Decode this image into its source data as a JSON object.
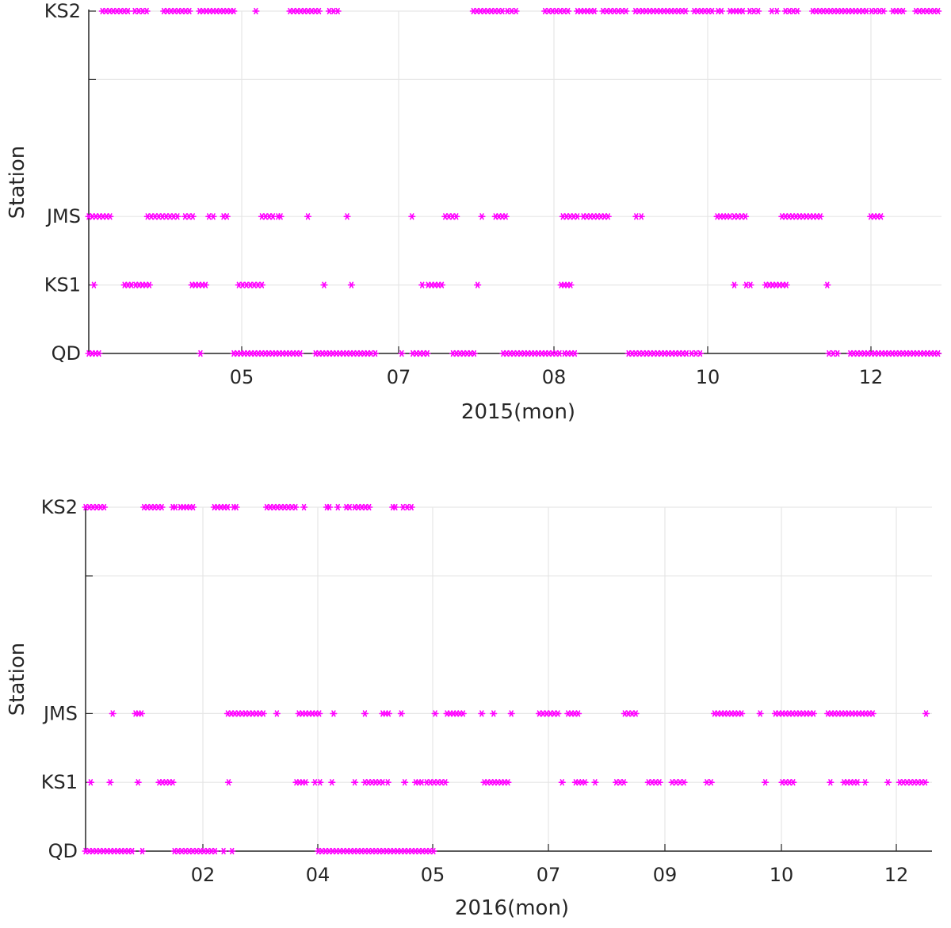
{
  "colors": {
    "marker": "#ff00ff",
    "grid": "#e6e6e6",
    "axis": "#262626",
    "text": "#262626",
    "background": "#ffffff"
  },
  "chart_data": [
    {
      "type": "scatter",
      "xlabel": "2015(mon)",
      "ylabel": "Station",
      "x_tick_labels": [
        "05",
        "07",
        "08",
        "10",
        "12"
      ],
      "x_range": [
        0,
        1.0
      ],
      "y_categories": [
        "QD",
        "KS1",
        "JMS",
        "KS2"
      ],
      "y_values": [
        0,
        1,
        2,
        5
      ],
      "y_range": [
        0,
        5
      ],
      "y_minor_ticks": [
        1,
        4
      ],
      "grid": true,
      "marker": "asterisk",
      "note_x_units": "fraction of displayed time span",
      "series": [
        {
          "station": "KS2",
          "y": 5,
          "ranges": [
            [
              0.016,
              0.046
            ],
            [
              0.054,
              0.068
            ],
            [
              0.088,
              0.118
            ],
            [
              0.13,
              0.17
            ],
            [
              0.195,
              0.197
            ],
            [
              0.236,
              0.27
            ],
            [
              0.282,
              0.292
            ],
            [
              0.451,
              0.485
            ],
            [
              0.491,
              0.501
            ],
            [
              0.535,
              0.562
            ],
            [
              0.573,
              0.593
            ],
            [
              0.603,
              0.63
            ],
            [
              0.641,
              0.7
            ],
            [
              0.71,
              0.731
            ],
            [
              0.738,
              0.742
            ],
            [
              0.752,
              0.767
            ],
            [
              0.775,
              0.785
            ],
            [
              0.801,
              0.807
            ],
            [
              0.817,
              0.831
            ],
            [
              0.849,
              0.912
            ],
            [
              0.918,
              0.932
            ],
            [
              0.943,
              0.955
            ],
            [
              0.97,
              0.996
            ]
          ]
        },
        {
          "station": "JMS",
          "y": 2,
          "ranges": [
            [
              0.0,
              0.025
            ],
            [
              0.069,
              0.104
            ],
            [
              0.113,
              0.122
            ],
            [
              0.141,
              0.146
            ],
            [
              0.158,
              0.162
            ],
            [
              0.203,
              0.216
            ],
            [
              0.222,
              0.225
            ],
            [
              0.256,
              0.258
            ],
            [
              0.302,
              0.304
            ],
            [
              0.378,
              0.38
            ],
            [
              0.418,
              0.431
            ],
            [
              0.46,
              0.462
            ],
            [
              0.477,
              0.489
            ],
            [
              0.556,
              0.573
            ],
            [
              0.58,
              0.609
            ],
            [
              0.642,
              0.648
            ],
            [
              0.737,
              0.752
            ],
            [
              0.757,
              0.77
            ],
            [
              0.813,
              0.858
            ],
            [
              0.917,
              0.929
            ]
          ]
        },
        {
          "station": "KS1",
          "y": 1,
          "ranges": [
            [
              0.005,
              0.007
            ],
            [
              0.042,
              0.05
            ],
            [
              0.055,
              0.071
            ],
            [
              0.121,
              0.137
            ],
            [
              0.176,
              0.203
            ],
            [
              0.275,
              0.277
            ],
            [
              0.307,
              0.309
            ],
            [
              0.39,
              0.392
            ],
            [
              0.398,
              0.414
            ],
            [
              0.455,
              0.457
            ],
            [
              0.554,
              0.565
            ],
            [
              0.756,
              0.758
            ],
            [
              0.771,
              0.776
            ],
            [
              0.794,
              0.818
            ],
            [
              0.865,
              0.867
            ]
          ]
        },
        {
          "station": "QD",
          "y": 0,
          "ranges": [
            [
              0.0,
              0.012
            ],
            [
              0.13,
              0.132
            ],
            [
              0.17,
              0.248
            ],
            [
              0.266,
              0.331
            ],
            [
              0.335,
              0.337
            ],
            [
              0.366,
              0.368
            ],
            [
              0.38,
              0.397
            ],
            [
              0.427,
              0.452
            ],
            [
              0.486,
              0.552
            ],
            [
              0.558,
              0.57
            ],
            [
              0.633,
              0.701
            ],
            [
              0.707,
              0.717
            ],
            [
              0.868,
              0.878
            ],
            [
              0.893,
              0.996
            ]
          ]
        }
      ]
    },
    {
      "type": "scatter",
      "xlabel": "2016(mon)",
      "ylabel": "Station",
      "x_tick_labels": [
        "02",
        "04",
        "05",
        "07",
        "09",
        "10",
        "12"
      ],
      "x_range": [
        0,
        1.0
      ],
      "y_categories": [
        "QD",
        "KS1",
        "JMS",
        "KS2"
      ],
      "y_values": [
        0,
        1,
        2,
        5
      ],
      "y_range": [
        0,
        5
      ],
      "y_minor_ticks": [
        1,
        4
      ],
      "grid": true,
      "marker": "asterisk",
      "note_x_units": "fraction of displayed time span",
      "series": [
        {
          "station": "KS2",
          "y": 5,
          "ranges": [
            [
              0.0,
              0.022
            ],
            [
              0.069,
              0.09
            ],
            [
              0.103,
              0.106
            ],
            [
              0.112,
              0.127
            ],
            [
              0.152,
              0.168
            ],
            [
              0.175,
              0.178
            ],
            [
              0.214,
              0.248
            ],
            [
              0.257,
              0.259
            ],
            [
              0.285,
              0.288
            ],
            [
              0.297,
              0.299
            ],
            [
              0.308,
              0.312
            ],
            [
              0.318,
              0.335
            ],
            [
              0.363,
              0.366
            ],
            [
              0.375,
              0.385
            ]
          ]
        },
        {
          "station": "JMS",
          "y": 2,
          "ranges": [
            [
              0.031,
              0.033
            ],
            [
              0.059,
              0.066
            ],
            [
              0.168,
              0.21
            ],
            [
              0.225,
              0.227
            ],
            [
              0.252,
              0.276
            ],
            [
              0.292,
              0.294
            ],
            [
              0.329,
              0.331
            ],
            [
              0.351,
              0.358
            ],
            [
              0.372,
              0.374
            ],
            [
              0.412,
              0.414
            ],
            [
              0.427,
              0.446
            ],
            [
              0.467,
              0.469
            ],
            [
              0.481,
              0.483
            ],
            [
              0.502,
              0.504
            ],
            [
              0.536,
              0.558
            ],
            [
              0.57,
              0.582
            ],
            [
              0.637,
              0.65
            ],
            [
              0.743,
              0.775
            ],
            [
              0.796,
              0.798
            ],
            [
              0.815,
              0.86
            ],
            [
              0.877,
              0.93
            ],
            [
              0.992,
              0.994
            ]
          ]
        },
        {
          "station": "KS1",
          "y": 1,
          "ranges": [
            [
              0.005,
              0.007
            ],
            [
              0.028,
              0.03
            ],
            [
              0.061,
              0.063
            ],
            [
              0.087,
              0.103
            ],
            [
              0.168,
              0.17
            ],
            [
              0.249,
              0.26
            ],
            [
              0.271,
              0.277
            ],
            [
              0.29,
              0.292
            ],
            [
              0.317,
              0.319
            ],
            [
              0.33,
              0.351
            ],
            [
              0.356,
              0.358
            ],
            [
              0.376,
              0.378
            ],
            [
              0.39,
              0.397
            ],
            [
              0.403,
              0.425
            ],
            [
              0.471,
              0.499
            ],
            [
              0.562,
              0.564
            ],
            [
              0.579,
              0.59
            ],
            [
              0.601,
              0.603
            ],
            [
              0.627,
              0.636
            ],
            [
              0.665,
              0.678
            ],
            [
              0.693,
              0.707
            ],
            [
              0.734,
              0.739
            ],
            [
              0.802,
              0.804
            ],
            [
              0.823,
              0.836
            ],
            [
              0.879,
              0.881
            ],
            [
              0.896,
              0.912
            ],
            [
              0.92,
              0.922
            ],
            [
              0.947,
              0.949
            ],
            [
              0.962,
              0.992
            ]
          ]
        },
        {
          "station": "QD",
          "y": 0,
          "ranges": [
            [
              0.0,
              0.055
            ],
            [
              0.066,
              0.068
            ],
            [
              0.105,
              0.153
            ],
            [
              0.162,
              0.164
            ],
            [
              0.172,
              0.174
            ],
            [
              0.275,
              0.411
            ]
          ]
        }
      ]
    }
  ]
}
